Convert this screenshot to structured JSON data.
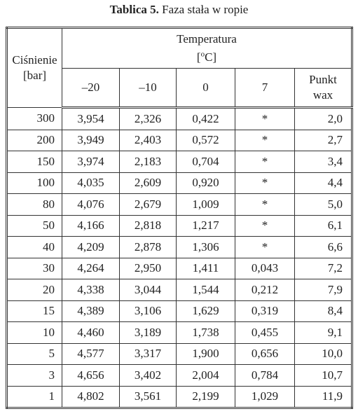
{
  "caption": {
    "label": "Tablica 5.",
    "text": "Faza stała w ropie"
  },
  "table": {
    "row_header": [
      "Ciśnienie",
      "[bar]"
    ],
    "group_header": {
      "title": "Temperatura",
      "unit_prefix": "[",
      "unit_sup": "o",
      "unit_suffix": "C]"
    },
    "columns": [
      "–20",
      "–10",
      "0",
      "7",
      "Punkt wax"
    ],
    "rows": [
      [
        "300",
        "3,954",
        "2,326",
        "0,422",
        "*",
        "2,0"
      ],
      [
        "200",
        "3,949",
        "2,403",
        "0,572",
        "*",
        "2,7"
      ],
      [
        "150",
        "3,974",
        "2,183",
        "0,704",
        "*",
        "3,4"
      ],
      [
        "100",
        "4,035",
        "2,609",
        "0,920",
        "*",
        "4,4"
      ],
      [
        "80",
        "4,076",
        "2,679",
        "1,009",
        "*",
        "5,0"
      ],
      [
        "50",
        "4,166",
        "2,818",
        "1,217",
        "*",
        "6,1"
      ],
      [
        "40",
        "4,209",
        "2,878",
        "1,306",
        "*",
        "6,6"
      ],
      [
        "30",
        "4,264",
        "2,950",
        "1,411",
        "0,043",
        "7,2"
      ],
      [
        "20",
        "4,338",
        "3,044",
        "1,544",
        "0,212",
        "7,9"
      ],
      [
        "15",
        "4,389",
        "3,106",
        "1,629",
        "0,319",
        "8,4"
      ],
      [
        "10",
        "4,460",
        "3,189",
        "1,738",
        "0,455",
        "9,1"
      ],
      [
        "5",
        "4,577",
        "3,317",
        "1,900",
        "0,656",
        "10,0"
      ],
      [
        "3",
        "4,656",
        "3,402",
        "2,004",
        "0,784",
        "10,7"
      ],
      [
        "1",
        "4,802",
        "3,561",
        "2,199",
        "1,029",
        "11,9"
      ]
    ]
  }
}
